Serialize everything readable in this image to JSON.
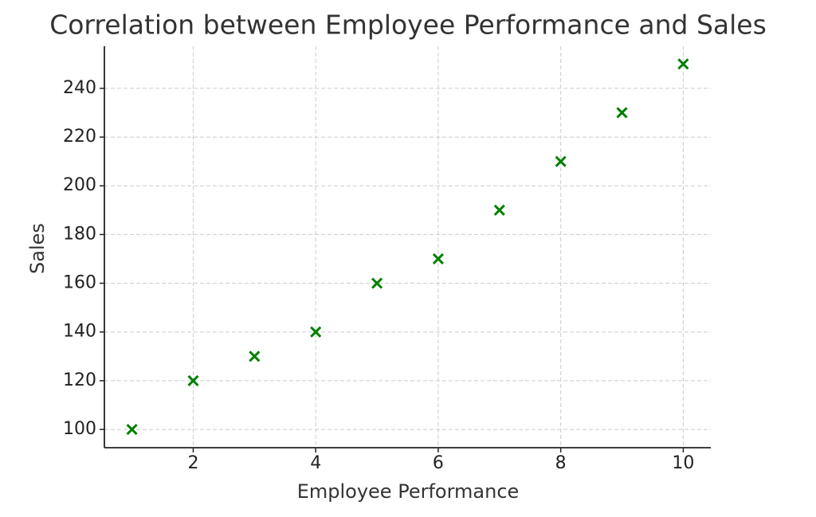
{
  "chart_data": {
    "type": "scatter",
    "title": "Correlation between Employee Performance and Sales",
    "x_label": "Employee Performance",
    "y_label": "Sales",
    "x": [
      1,
      2,
      3,
      4,
      5,
      6,
      7,
      8,
      9,
      10
    ],
    "values": [
      100,
      120,
      130,
      140,
      160,
      170,
      190,
      210,
      230,
      250
    ],
    "color": "#008000",
    "marker": "x",
    "xlim": [
      0.55,
      10.45
    ],
    "ylim": [
      92.5,
      257.3
    ],
    "xticks": [
      2,
      4,
      6,
      8,
      10
    ],
    "yticks": [
      100,
      120,
      140,
      160,
      180,
      200,
      220,
      240
    ],
    "grid": true
  }
}
